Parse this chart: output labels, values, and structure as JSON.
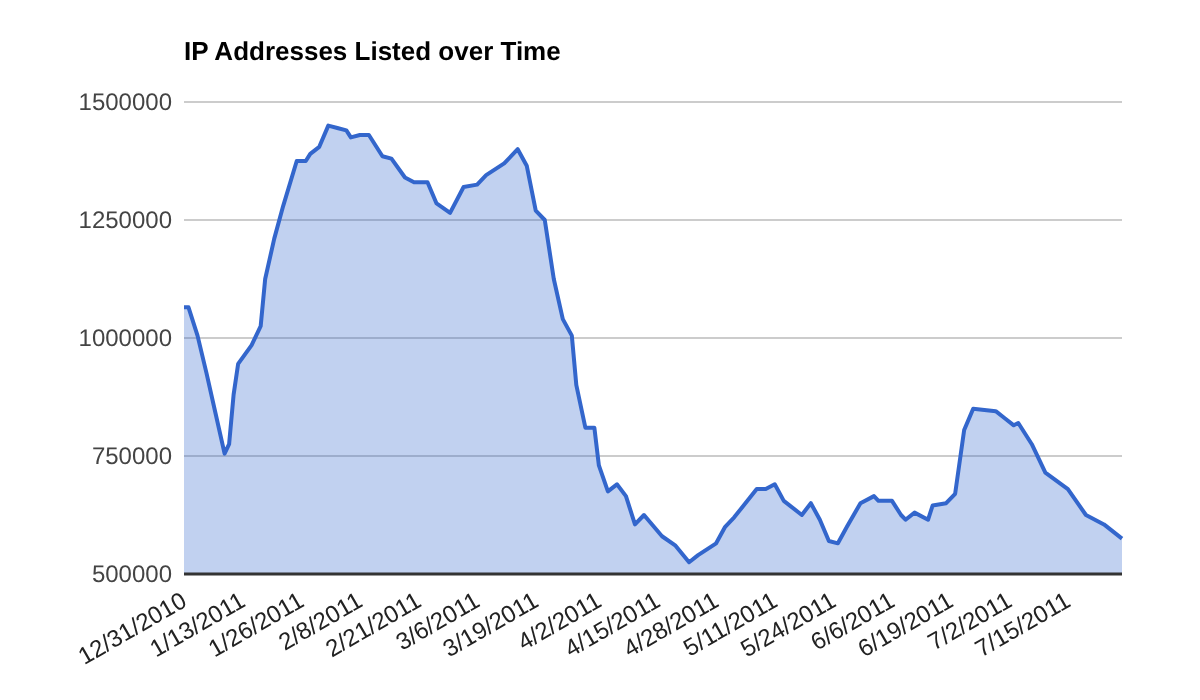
{
  "chart_data": {
    "type": "area",
    "title": "IP Addresses Listed over Time",
    "x": [
      "2010-12-31",
      "2011-01-01",
      "2011-01-03",
      "2011-01-05",
      "2011-01-07",
      "2011-01-09",
      "2011-01-10",
      "2011-01-11",
      "2011-01-12",
      "2011-01-15",
      "2011-01-17",
      "2011-01-18",
      "2011-01-20",
      "2011-01-22",
      "2011-01-25",
      "2011-01-27",
      "2011-01-28",
      "2011-01-30",
      "2011-02-01",
      "2011-02-03",
      "2011-02-05",
      "2011-02-06",
      "2011-02-08",
      "2011-02-10",
      "2011-02-13",
      "2011-02-15",
      "2011-02-18",
      "2011-02-20",
      "2011-02-23",
      "2011-02-25",
      "2011-02-28",
      "2011-03-03",
      "2011-03-06",
      "2011-03-08",
      "2011-03-12",
      "2011-03-15",
      "2011-03-17",
      "2011-03-19",
      "2011-03-21",
      "2011-03-23",
      "2011-03-25",
      "2011-03-27",
      "2011-03-28",
      "2011-03-30",
      "2011-04-01",
      "2011-04-02",
      "2011-04-04",
      "2011-04-06",
      "2011-04-08",
      "2011-04-10",
      "2011-04-12",
      "2011-04-16",
      "2011-04-19",
      "2011-04-22",
      "2011-04-24",
      "2011-04-28",
      "2011-04-30",
      "2011-05-02",
      "2011-05-07",
      "2011-05-09",
      "2011-05-11",
      "2011-05-13",
      "2011-05-17",
      "2011-05-19",
      "2011-05-21",
      "2011-05-23",
      "2011-05-25",
      "2011-05-27",
      "2011-05-30",
      "2011-06-02",
      "2011-06-03",
      "2011-06-06",
      "2011-06-08",
      "2011-06-09",
      "2011-06-11",
      "2011-06-14",
      "2011-06-15",
      "2011-06-18",
      "2011-06-20",
      "2011-06-22",
      "2011-06-24",
      "2011-06-29",
      "2011-07-01",
      "2011-07-03",
      "2011-07-04",
      "2011-07-07",
      "2011-07-10",
      "2011-07-15",
      "2011-07-19",
      "2011-07-23",
      "2011-07-27"
    ],
    "series": [
      {
        "color": "#3366cc",
        "values": [
          1065000,
          1065000,
          1005000,
          925000,
          840000,
          755000,
          775000,
          880000,
          945000,
          985000,
          1025000,
          1125000,
          1210000,
          1280000,
          1375000,
          1375000,
          1390000,
          1405000,
          1450000,
          1445000,
          1440000,
          1425000,
          1430000,
          1430000,
          1385000,
          1380000,
          1340000,
          1330000,
          1330000,
          1285000,
          1265000,
          1320000,
          1325000,
          1345000,
          1370000,
          1400000,
          1365000,
          1270000,
          1250000,
          1125000,
          1040000,
          1005000,
          900000,
          810000,
          810000,
          730000,
          675000,
          690000,
          665000,
          605000,
          625000,
          580000,
          560000,
          525000,
          540000,
          565000,
          600000,
          620000,
          680000,
          680000,
          690000,
          655000,
          625000,
          650000,
          615000,
          570000,
          565000,
          600000,
          650000,
          665000,
          655000,
          655000,
          625000,
          615000,
          630000,
          615000,
          645000,
          650000,
          670000,
          805000,
          850000,
          845000,
          830000,
          815000,
          820000,
          775000,
          715000,
          680000,
          625000,
          605000,
          575000
        ]
      }
    ],
    "xlim": [
      "2010-12-31",
      "2011-07-27"
    ],
    "xticks": [
      {
        "value": "2010-12-31",
        "label": "12/31/2010"
      },
      {
        "value": "2011-01-13",
        "label": "1/13/2011"
      },
      {
        "value": "2011-01-26",
        "label": "1/26/2011"
      },
      {
        "value": "2011-02-08",
        "label": "2/8/2011"
      },
      {
        "value": "2011-02-21",
        "label": "2/21/2011"
      },
      {
        "value": "2011-03-06",
        "label": "3/6/2011"
      },
      {
        "value": "2011-03-19",
        "label": "3/19/2011"
      },
      {
        "value": "2011-04-02",
        "label": "4/2/2011"
      },
      {
        "value": "2011-04-15",
        "label": "4/15/2011"
      },
      {
        "value": "2011-04-28",
        "label": "4/28/2011"
      },
      {
        "value": "2011-05-11",
        "label": "5/11/2011"
      },
      {
        "value": "2011-05-24",
        "label": "5/24/2011"
      },
      {
        "value": "2011-06-06",
        "label": "6/6/2011"
      },
      {
        "value": "2011-06-19",
        "label": "6/19/2011"
      },
      {
        "value": "2011-07-02",
        "label": "7/2/2011"
      },
      {
        "value": "2011-07-15",
        "label": "7/15/2011"
      }
    ],
    "ylim": [
      500000,
      1500000
    ],
    "yticks": [
      500000,
      750000,
      1000000,
      1250000,
      1500000
    ],
    "grid": "y"
  }
}
